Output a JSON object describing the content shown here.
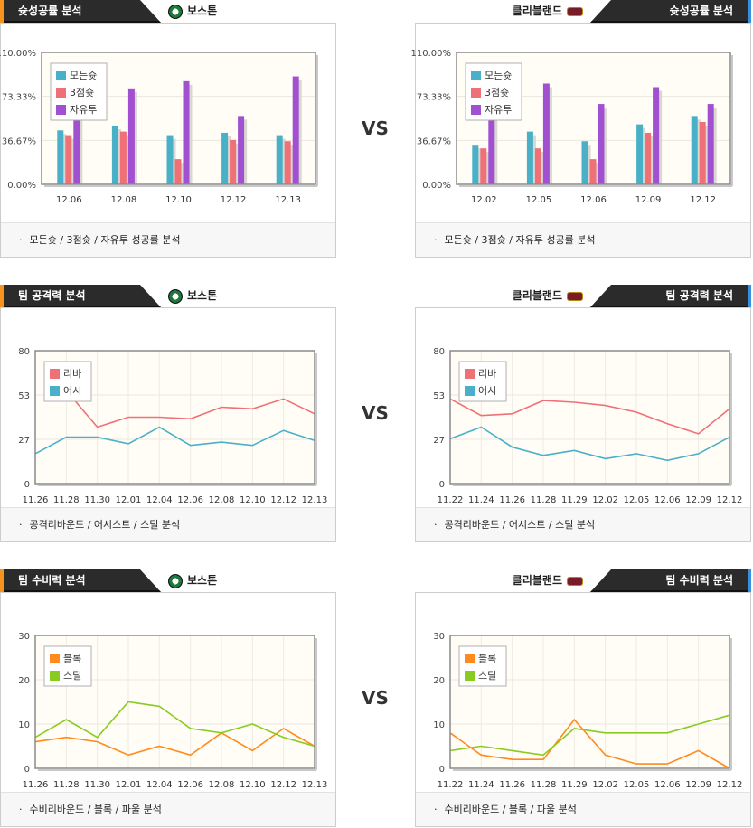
{
  "vs_label": "VS",
  "legend_colors": {
    "teal": "#4ab0c8",
    "red": "#f07078",
    "purple": "#a050d0",
    "orange": "#ff8a1e",
    "green": "#88cc22"
  },
  "rows": [
    {
      "left": {
        "header": "슛성공률 분석",
        "team": "보스톤",
        "team_icon": "celtics-logo-icon",
        "footer": "모든슛 / 3점슛 / 자유투 성공률 분석",
        "chart_data": {
          "type": "bar",
          "categories": [
            "12.06",
            "12.08",
            "12.10",
            "12.12",
            "12.13"
          ],
          "y_ticks": [
            "110.00%",
            "73.33%",
            "36.67%",
            "0.00%"
          ],
          "ylim": [
            0,
            110
          ],
          "series": [
            {
              "name": "모든슛",
              "color": "#4ab0c8",
              "values": [
                45,
                49,
                41,
                43,
                41
              ]
            },
            {
              "name": "3점슛",
              "color": "#f07078",
              "values": [
                41,
                44,
                21,
                37,
                36
              ]
            },
            {
              "name": "자유투",
              "color": "#a050d0",
              "values": [
                59,
                80,
                86,
                57,
                90
              ]
            }
          ]
        }
      },
      "right": {
        "header": "슛성공률 분석",
        "team": "클리블랜드",
        "team_icon": "cavaliers-logo-icon",
        "footer": "모든슛 / 3점슛 / 자유투 성공률 분석",
        "chart_data": {
          "type": "bar",
          "categories": [
            "12.02",
            "12.05",
            "12.06",
            "12.09",
            "12.12"
          ],
          "y_ticks": [
            "110.00%",
            "73.33%",
            "36.67%",
            "0.00%"
          ],
          "ylim": [
            0,
            110
          ],
          "series": [
            {
              "name": "모든슛",
              "color": "#4ab0c8",
              "values": [
                33,
                44,
                36,
                50,
                57
              ]
            },
            {
              "name": "3점슛",
              "color": "#f07078",
              "values": [
                30,
                30,
                21,
                43,
                52
              ]
            },
            {
              "name": "자유투",
              "color": "#a050d0",
              "values": [
                60,
                84,
                67,
                81,
                67
              ]
            }
          ]
        }
      }
    },
    {
      "left": {
        "header": "팀 공격력 분석",
        "team": "보스톤",
        "team_icon": "celtics-logo-icon",
        "footer": "공격리바운드 / 어시스트 / 스틸 분석",
        "chart_data": {
          "type": "line",
          "categories": [
            "11.26",
            "11.28",
            "11.30",
            "12.01",
            "12.04",
            "12.06",
            "12.08",
            "12.10",
            "12.12",
            "12.13"
          ],
          "y_ticks": [
            "80",
            "53",
            "27",
            "0"
          ],
          "ylim": [
            0,
            80
          ],
          "series": [
            {
              "name": "리바",
              "color": "#f07078",
              "values": [
                null,
                56,
                34,
                40,
                40,
                39,
                46,
                45,
                51,
                42
              ]
            },
            {
              "name": "어시",
              "color": "#4ab0c8",
              "values": [
                18,
                28,
                28,
                24,
                34,
                23,
                25,
                23,
                32,
                26
              ]
            }
          ]
        }
      },
      "right": {
        "header": "팀 공격력 분석",
        "team": "클리블랜드",
        "team_icon": "cavaliers-logo-icon",
        "footer": "공격리바운드 / 어시스트 / 스틸 분석",
        "chart_data": {
          "type": "line",
          "categories": [
            "11.22",
            "11.24",
            "11.26",
            "11.28",
            "11.29",
            "12.02",
            "12.05",
            "12.06",
            "12.09",
            "12.12"
          ],
          "y_ticks": [
            "80",
            "53",
            "27",
            "0"
          ],
          "ylim": [
            0,
            80
          ],
          "series": [
            {
              "name": "리바",
              "color": "#f07078",
              "values": [
                51,
                41,
                42,
                50,
                49,
                47,
                43,
                36,
                30,
                45
              ]
            },
            {
              "name": "어시",
              "color": "#4ab0c8",
              "values": [
                27,
                34,
                22,
                17,
                20,
                15,
                18,
                14,
                18,
                28
              ]
            }
          ]
        }
      }
    },
    {
      "left": {
        "header": "팀 수비력 분석",
        "team": "보스톤",
        "team_icon": "celtics-logo-icon",
        "footer": "수비리바운드 / 블록 / 파울 분석",
        "chart_data": {
          "type": "line",
          "categories": [
            "11.26",
            "11.28",
            "11.30",
            "12.01",
            "12.04",
            "12.06",
            "12.08",
            "12.10",
            "12.12",
            "12.13"
          ],
          "y_ticks": [
            "30",
            "20",
            "10",
            "0"
          ],
          "ylim": [
            0,
            30
          ],
          "series": [
            {
              "name": "블록",
              "color": "#ff8a1e",
              "values": [
                6,
                7,
                6,
                3,
                5,
                3,
                8,
                4,
                9,
                5
              ]
            },
            {
              "name": "스틸",
              "color": "#88cc22",
              "values": [
                7,
                11,
                7,
                15,
                14,
                9,
                8,
                10,
                7,
                5
              ]
            }
          ]
        }
      },
      "right": {
        "header": "팀 수비력 분석",
        "team": "클리블랜드",
        "team_icon": "cavaliers-logo-icon",
        "footer": "수비리바운드 / 블록 / 파울 분석",
        "chart_data": {
          "type": "line",
          "categories": [
            "11.22",
            "11.24",
            "11.26",
            "11.28",
            "11.29",
            "12.02",
            "12.05",
            "12.06",
            "12.09",
            "12.12"
          ],
          "y_ticks": [
            "30",
            "20",
            "10",
            "0"
          ],
          "ylim": [
            0,
            30
          ],
          "series": [
            {
              "name": "블록",
              "color": "#ff8a1e",
              "values": [
                8,
                3,
                2,
                2,
                11,
                3,
                1,
                1,
                4,
                0
              ]
            },
            {
              "name": "스틸",
              "color": "#88cc22",
              "values": [
                4,
                5,
                4,
                3,
                9,
                8,
                8,
                8,
                10,
                12
              ]
            }
          ]
        }
      }
    }
  ]
}
